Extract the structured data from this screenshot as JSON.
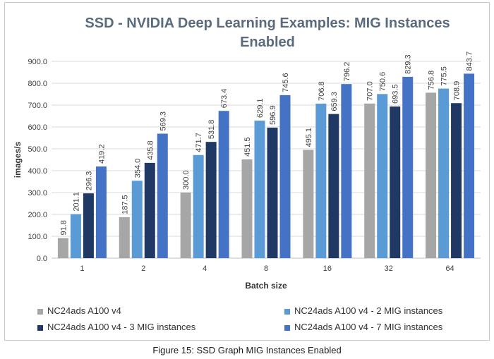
{
  "chart_data": {
    "type": "bar",
    "title_line1": "SSD - NVIDIA Deep Learning Examples: MIG Instances",
    "title_line2": "Enabled",
    "xlabel": "Batch size",
    "ylabel": "images/s",
    "ylim": [
      0,
      900
    ],
    "ytick_step": 100,
    "ytick_labels": [
      "0.0",
      "100.0",
      "200.0",
      "300.0",
      "400.0",
      "500.0",
      "600.0",
      "700.0",
      "800.0",
      "900.0"
    ],
    "grid": true,
    "legend_position": "bottom",
    "categories": [
      "1",
      "2",
      "4",
      "8",
      "16",
      "32",
      "64"
    ],
    "series": [
      {
        "name": "NC24ads A100 v4",
        "color": "#a6a6a6",
        "values": [
          91.8,
          187.5,
          300.0,
          451.5,
          495.1,
          707.0,
          756.8
        ]
      },
      {
        "name": "NC24ads A100 v4 - 2 MIG instances",
        "color": "#5b9bd5",
        "values": [
          201.1,
          354.0,
          471.7,
          629.1,
          706.8,
          750.6,
          775.5
        ]
      },
      {
        "name": "NC24ads A100 v4 - 3 MIG instances",
        "color": "#1f3864",
        "values": [
          296.3,
          435.8,
          531.8,
          596.9,
          659.3,
          693.5,
          708.9
        ]
      },
      {
        "name": "NC24ads A100 v4 - 7 MIG instances",
        "color": "#4472c4",
        "values": [
          419.2,
          569.3,
          673.4,
          745.6,
          796.2,
          829.3,
          843.7
        ]
      }
    ]
  },
  "caption": "Figure 15: SSD Graph MIG Instances Enabled"
}
